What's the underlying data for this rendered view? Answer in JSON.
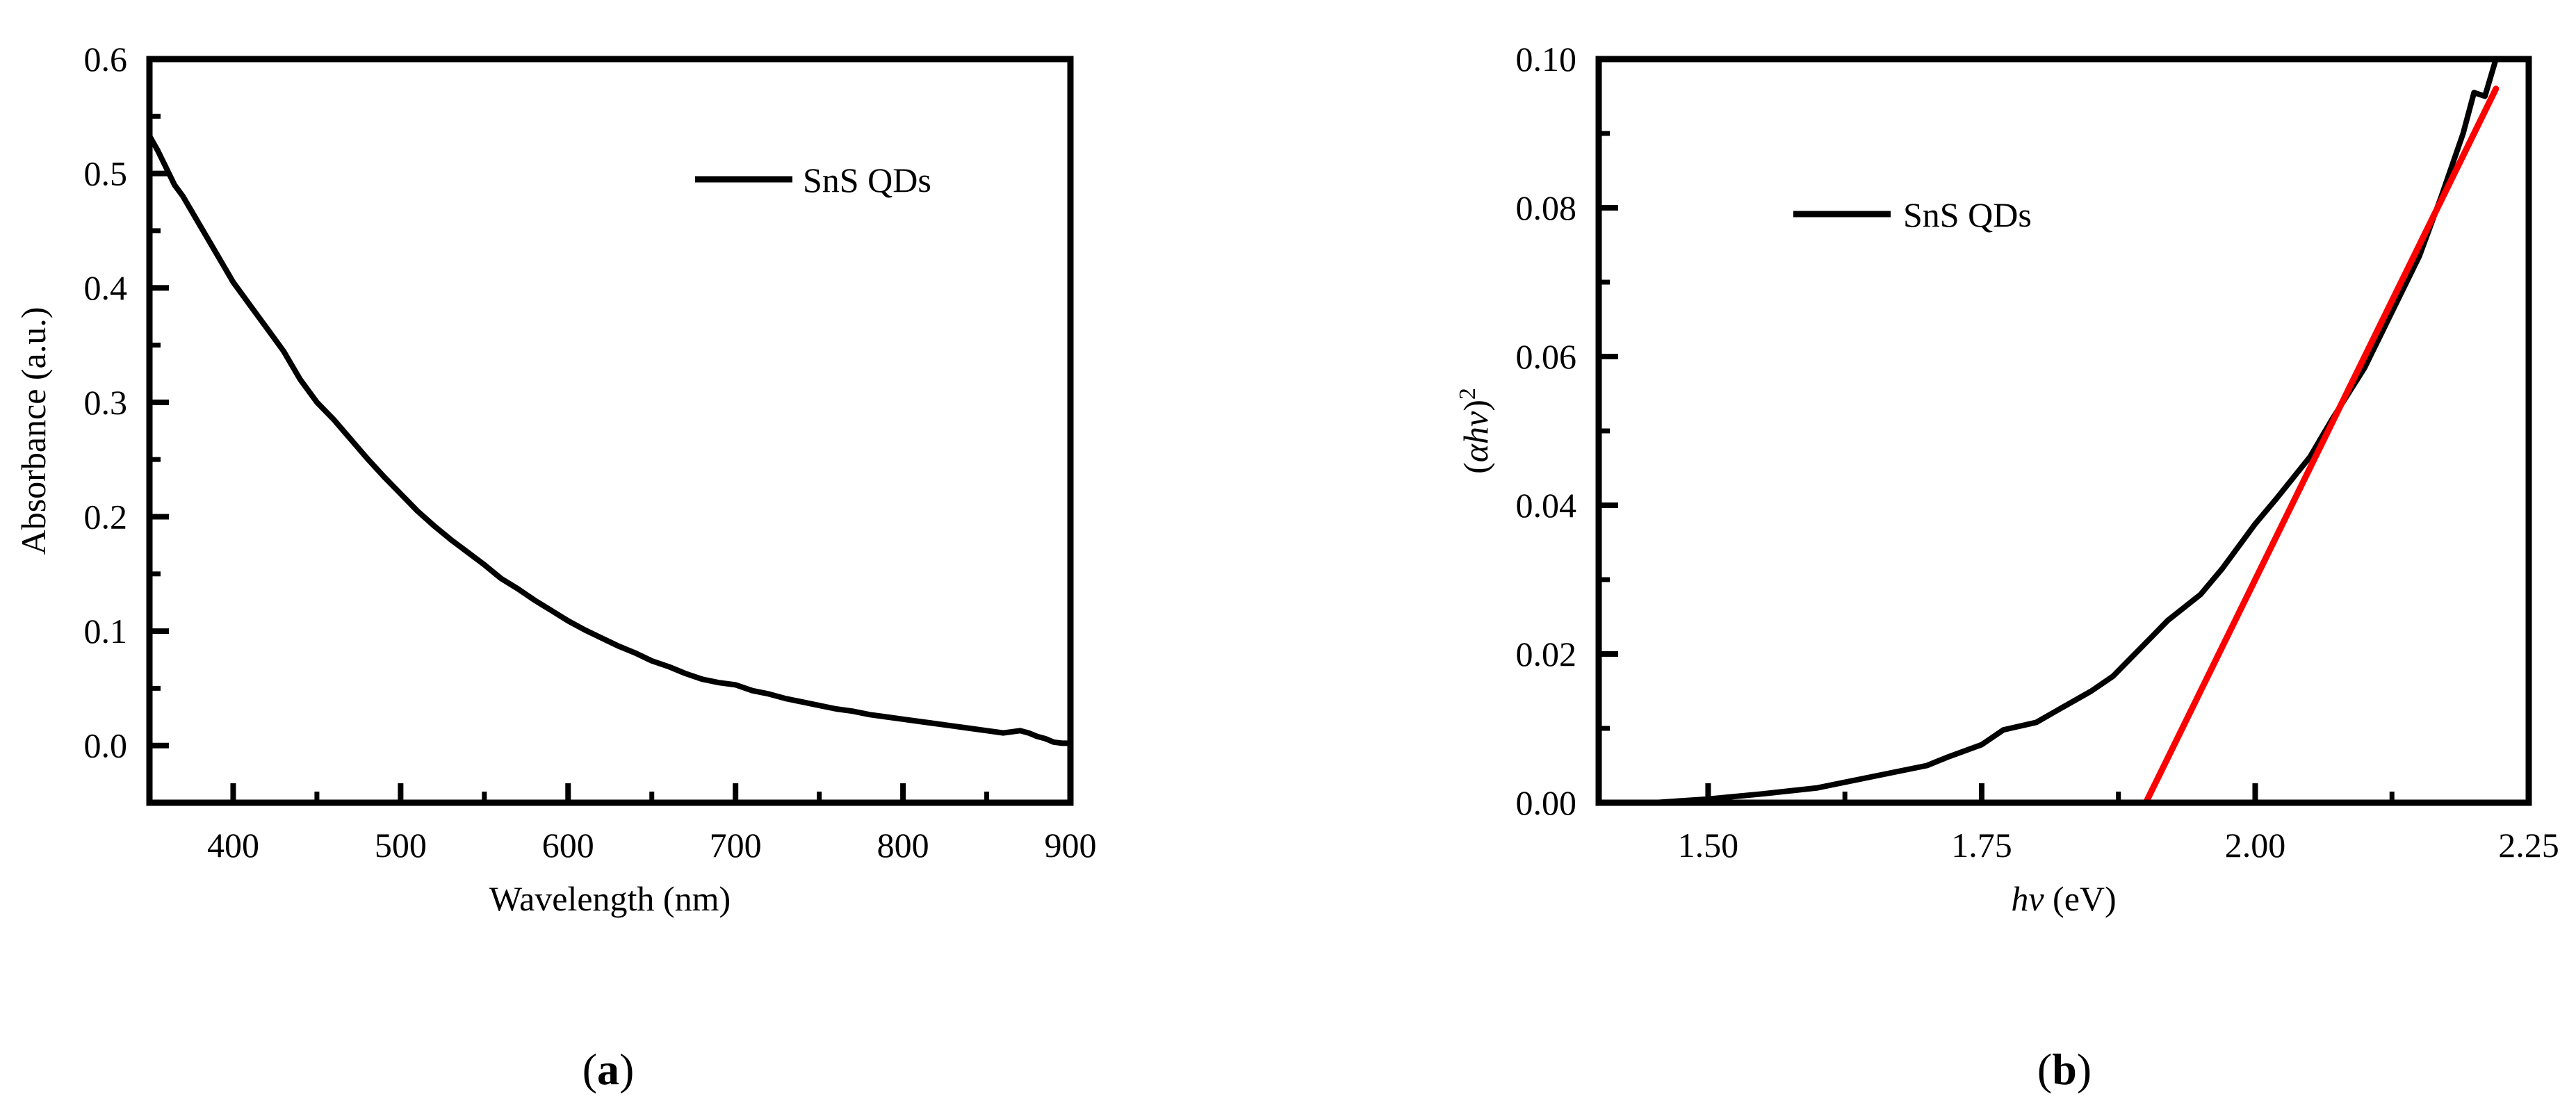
{
  "chart_data": [
    {
      "type": "line",
      "panel_label": "a",
      "xlabel": "Wavelength (nm)",
      "ylabel": "Absorbance (a.u.)",
      "xlim": [
        350,
        900
      ],
      "ylim": [
        -0.05,
        0.6
      ],
      "xticks": [
        400,
        500,
        600,
        700,
        800,
        900
      ],
      "xtick_labels": [
        "400",
        "500",
        "600",
        "700",
        "800",
        "900"
      ],
      "yticks": [
        0.0,
        0.1,
        0.2,
        0.3,
        0.4,
        0.5,
        0.6
      ],
      "ytick_labels": [
        "0.0",
        "0.1",
        "0.2",
        "0.3",
        "0.4",
        "0.5",
        "0.6"
      ],
      "grid": false,
      "legend_position": "top-right",
      "series": [
        {
          "name": "SnS QDs",
          "color": "#000000",
          "x": [
            350,
            355,
            360,
            365,
            370,
            380,
            390,
            400,
            410,
            420,
            430,
            440,
            450,
            460,
            470,
            480,
            490,
            500,
            510,
            520,
            530,
            540,
            550,
            560,
            570,
            580,
            590,
            600,
            610,
            620,
            630,
            640,
            650,
            660,
            670,
            680,
            690,
            700,
            710,
            720,
            730,
            740,
            750,
            760,
            770,
            780,
            790,
            800,
            810,
            820,
            830,
            840,
            850,
            860,
            865,
            870,
            875,
            880,
            885,
            890,
            895,
            900
          ],
          "y": [
            0.533,
            0.52,
            0.505,
            0.49,
            0.48,
            0.455,
            0.43,
            0.405,
            0.385,
            0.365,
            0.345,
            0.32,
            0.3,
            0.285,
            0.268,
            0.251,
            0.235,
            0.22,
            0.205,
            0.192,
            0.18,
            0.169,
            0.158,
            0.146,
            0.137,
            0.127,
            0.118,
            0.109,
            0.101,
            0.094,
            0.087,
            0.081,
            0.074,
            0.069,
            0.063,
            0.058,
            0.055,
            0.053,
            0.048,
            0.045,
            0.041,
            0.038,
            0.035,
            0.032,
            0.03,
            0.027,
            0.025,
            0.023,
            0.021,
            0.019,
            0.017,
            0.015,
            0.013,
            0.011,
            0.012,
            0.013,
            0.011,
            0.008,
            0.006,
            0.003,
            0.002,
            0.002
          ]
        }
      ]
    },
    {
      "type": "line",
      "panel_label": "b",
      "xlabel_italic": "hv",
      "xlabel_unit": " (eV)",
      "ylabel_prefix": "(",
      "ylabel_italic": "αhv",
      "ylabel_suffix": ")",
      "ylabel_superscript": "2",
      "xlim": [
        1.4,
        2.25
      ],
      "ylim": [
        0.0,
        0.1
      ],
      "xticks": [
        1.5,
        1.75,
        2.0,
        2.25
      ],
      "xtick_labels": [
        "1.50",
        "1.75",
        "2.00",
        "2.25"
      ],
      "yticks": [
        0.0,
        0.02,
        0.04,
        0.06,
        0.08,
        0.1
      ],
      "ytick_labels": [
        "0.00",
        "0.02",
        "0.04",
        "0.06",
        "0.08",
        "0.10"
      ],
      "grid": false,
      "legend_position": "top-left",
      "series": [
        {
          "name": "SnS QDs",
          "color": "#000000",
          "x": [
            1.4,
            1.45,
            1.5,
            1.55,
            1.6,
            1.65,
            1.7,
            1.72,
            1.75,
            1.77,
            1.8,
            1.82,
            1.85,
            1.87,
            1.9,
            1.92,
            1.95,
            1.97,
            2.0,
            2.02,
            2.05,
            2.07,
            2.1,
            2.12,
            2.15,
            2.17,
            2.19,
            2.2,
            2.21,
            2.22
          ],
          "y": [
            0.0,
            0.0,
            0.0005,
            0.0012,
            0.002,
            0.0035,
            0.005,
            0.0062,
            0.0078,
            0.0098,
            0.0108,
            0.0125,
            0.015,
            0.017,
            0.0215,
            0.0245,
            0.028,
            0.0315,
            0.0375,
            0.041,
            0.0465,
            0.0515,
            0.0585,
            0.0645,
            0.0735,
            0.0815,
            0.09,
            0.0955,
            0.095,
            0.1
          ]
        },
        {
          "name": "",
          "color": "#ff0000",
          "x": [
            1.9,
            2.22
          ],
          "y": [
            0.0,
            0.096
          ]
        }
      ]
    }
  ]
}
